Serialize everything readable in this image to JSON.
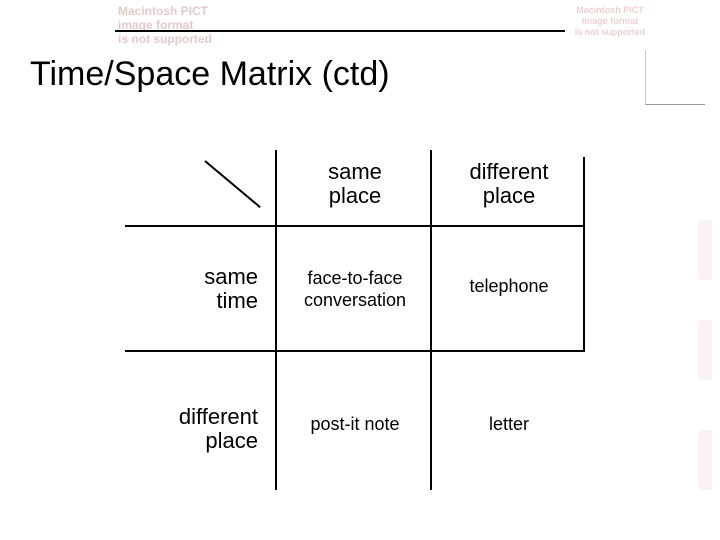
{
  "artifacts": {
    "topleft": "Macintosh PICT\nimage format\nis not supported",
    "topright": "Macintosh PICT\nImage format\nis not supported"
  },
  "title": "Time/Space Matrix (ctd)",
  "matrix": {
    "type": "table",
    "col_headers": [
      "same\nplace",
      "different\nplace"
    ],
    "row_headers": [
      "same\ntime",
      "different\nplace"
    ],
    "cells": [
      [
        "face-to-face\nconversation",
        "telephone"
      ],
      [
        "post-it note",
        "letter"
      ]
    ],
    "header_fontsize": 22,
    "cell_fontsize": 18,
    "header_font": "Comic Sans MS",
    "cell_font": "Arial",
    "line_color": "#000000",
    "background": "#ffffff"
  }
}
